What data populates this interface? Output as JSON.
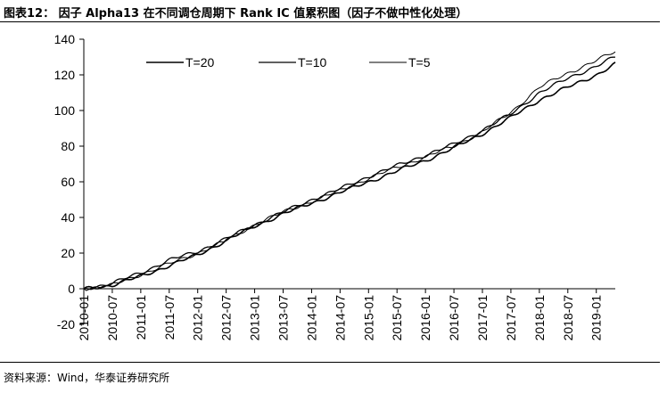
{
  "header": {
    "title": "图表12： 因子 Alpha13 在不同调仓周期下 Rank IC 值累积图（因子不做中性化处理）"
  },
  "footer": {
    "source": "资料来源：Wind，华泰证券研究所"
  },
  "colors": {
    "line": "#000000",
    "background": "#ffffff"
  },
  "chart_data": {
    "type": "line",
    "title": "",
    "xlabel": "",
    "ylabel": "",
    "ylim": [
      -20,
      140
    ],
    "yticks": [
      -20,
      0,
      20,
      40,
      60,
      80,
      100,
      120,
      140
    ],
    "xticks": [
      "2010-01",
      "2010-07",
      "2011-01",
      "2011-07",
      "2012-01",
      "2012-07",
      "2013-01",
      "2013-07",
      "2014-01",
      "2014-07",
      "2015-01",
      "2015-07",
      "2016-01",
      "2016-07",
      "2017-01",
      "2017-07",
      "2018-01",
      "2018-07",
      "2019-01"
    ],
    "grid": false,
    "legend_position": "top-left",
    "x": [
      "2010-01",
      "2010-07",
      "2011-01",
      "2011-07",
      "2012-01",
      "2012-07",
      "2013-01",
      "2013-07",
      "2014-01",
      "2014-07",
      "2015-01",
      "2015-07",
      "2016-01",
      "2016-07",
      "2017-01",
      "2017-07",
      "2018-01",
      "2018-07",
      "2019-01",
      "2019-05"
    ],
    "series": [
      {
        "name": "T=20",
        "values": [
          0,
          2,
          7,
          13,
          19,
          27,
          35,
          42,
          48,
          54,
          60,
          66,
          72,
          79,
          87,
          96,
          106,
          113,
          120,
          126
        ]
      },
      {
        "name": "T=10",
        "values": [
          0,
          3,
          9,
          16,
          21,
          28,
          36,
          43,
          50,
          56,
          63,
          69,
          75,
          81,
          89,
          98,
          110,
          118,
          125,
          130
        ]
      },
      {
        "name": "T=5",
        "values": [
          0,
          2,
          8,
          14,
          20,
          27,
          36,
          43,
          49,
          55,
          62,
          68,
          74,
          80,
          88,
          99,
          113,
          121,
          128,
          133
        ]
      }
    ]
  }
}
